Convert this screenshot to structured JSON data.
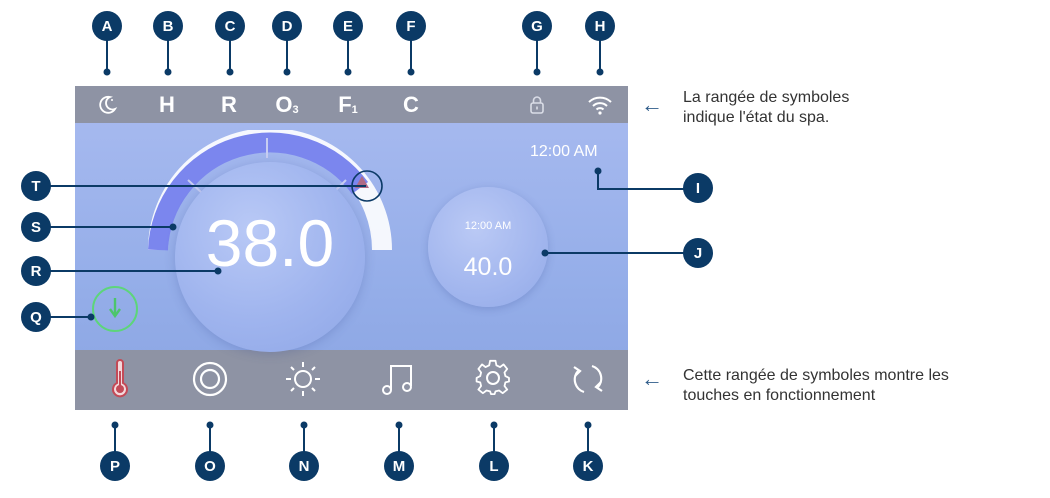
{
  "status_bar": {
    "icons": [
      "moon-icon",
      "lock-icon",
      "wifi-icon"
    ],
    "letters": {
      "h": "H",
      "r": "R",
      "o": "O",
      "o_sub": "3",
      "f": "F",
      "f_sub": "1",
      "c": "C"
    }
  },
  "clock": {
    "time": "12:00 AM"
  },
  "main": {
    "current_temp": "38.0",
    "set_point_time": "12:00 AM",
    "set_point_temp": "40.0"
  },
  "button_bar": {
    "icons": [
      "thermometer-icon",
      "pump-icon",
      "light-icon",
      "music-icon",
      "settings-icon",
      "refresh-icon"
    ]
  },
  "callouts": {
    "top": [
      "A",
      "B",
      "C",
      "D",
      "E",
      "F",
      "G",
      "H"
    ],
    "right": [
      "I",
      "J"
    ],
    "left": [
      "T",
      "S",
      "R",
      "Q"
    ],
    "bottom": [
      "P",
      "O",
      "N",
      "M",
      "L",
      "K"
    ]
  },
  "captions": {
    "status_row": "La rangée de symboles\nindique l'état du spa.",
    "status_row_line1": "La rangée de symboles",
    "status_row_line2": "indique l'état du spa.",
    "button_row_line1": "Cette rangée de symboles montre les",
    "button_row_line2": "touches en fonctionnement"
  },
  "colors": {
    "screen_bg": "#95aee9",
    "bar_bg": "#8e93a4",
    "badge": "#0b3a66",
    "arc_blue": "#7b86ee",
    "info_green": "#5dd57a",
    "thermo_red": "#c34a57"
  }
}
